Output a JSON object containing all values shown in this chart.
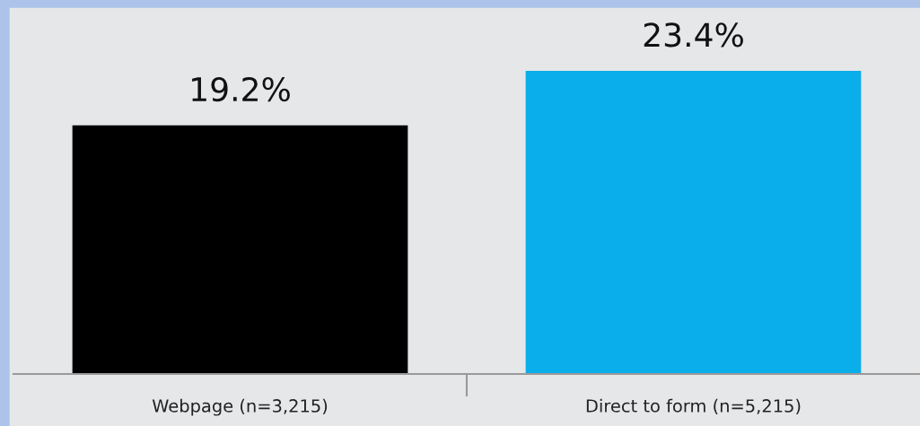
{
  "chart_data": {
    "type": "bar",
    "categories": [
      "Webpage (n=3,215)",
      "Direct to form (n=5,215)"
    ],
    "values": [
      19.2,
      23.4
    ],
    "colors": [
      "#000000",
      "#0aaeeb"
    ],
    "value_labels": [
      "19.2%",
      "23.4%"
    ],
    "grid": false,
    "legend": false
  }
}
